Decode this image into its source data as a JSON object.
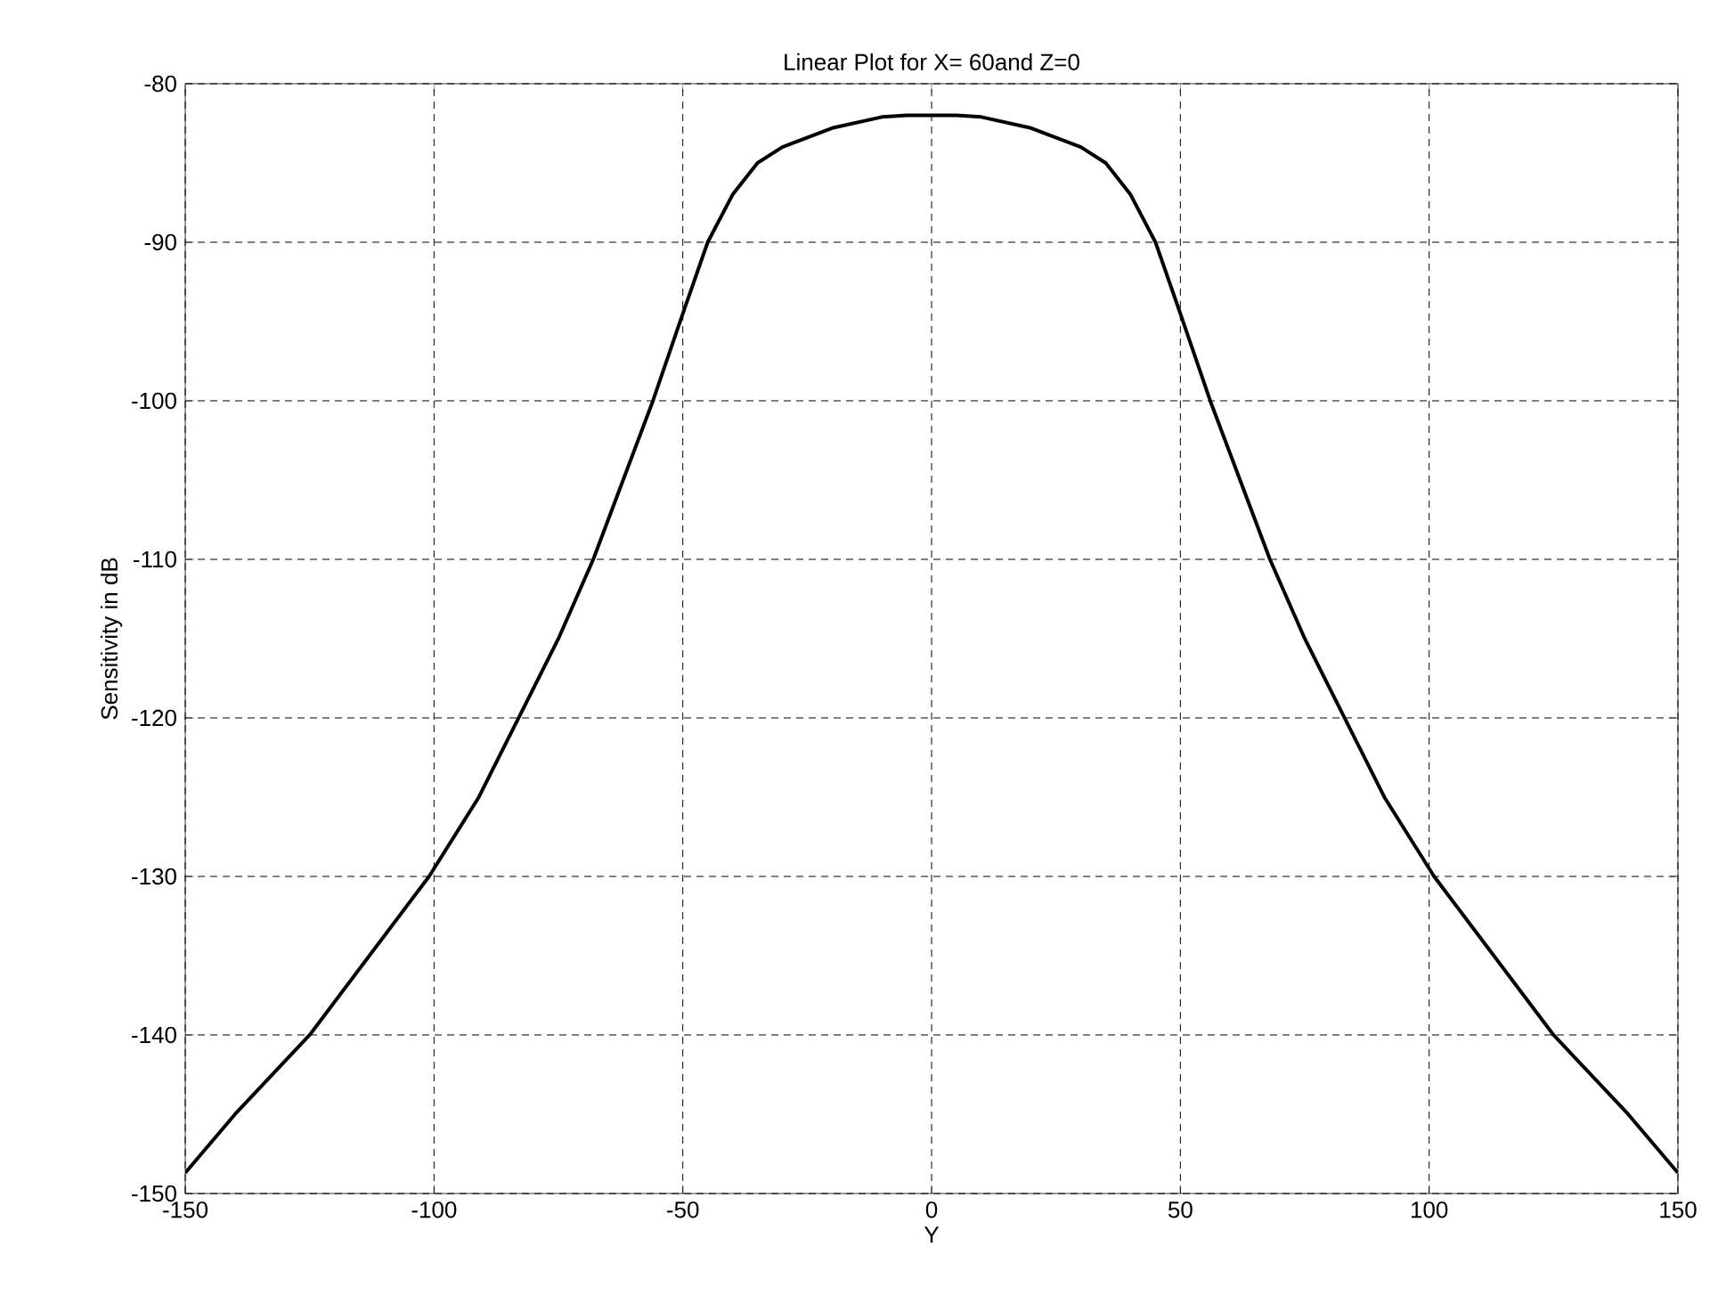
{
  "chart_data": {
    "type": "line",
    "title": "Linear Plot for X= 60and Z=0",
    "xlabel": "Y",
    "ylabel": "Sensitivity in  dB",
    "xlim": [
      -150,
      150
    ],
    "ylim": [
      -150,
      -80
    ],
    "xticks": [
      -150,
      -100,
      -50,
      0,
      50,
      100,
      150
    ],
    "yticks": [
      -150,
      -140,
      -130,
      -120,
      -110,
      -100,
      -90,
      -80
    ],
    "grid": true,
    "line_style": "solid",
    "series": [
      {
        "color": "#000000",
        "x": [
          -150,
          -140,
          -125,
          -113,
          -101,
          -91,
          -83,
          -75,
          -68,
          -62,
          -56,
          -50,
          -45,
          -40,
          -35,
          -30,
          -20,
          -10,
          -5,
          0,
          5,
          10,
          20,
          30,
          35,
          40,
          45,
          50,
          56,
          62,
          68,
          75,
          83,
          91,
          101,
          113,
          125,
          140,
          150
        ],
        "values": [
          -148.7,
          -145.0,
          -140,
          -135,
          -130,
          -125,
          -120,
          -115,
          -110,
          -105,
          -100,
          -94.5,
          -90,
          -87,
          -85,
          -84,
          -82.8,
          -82.1,
          -82,
          -82,
          -82,
          -82.1,
          -82.8,
          -84,
          -85,
          -87,
          -90,
          -94.5,
          -100,
          -105,
          -110,
          -115,
          -120,
          -125,
          -130,
          -135,
          -140,
          -145.0,
          -148.7
        ]
      }
    ]
  }
}
